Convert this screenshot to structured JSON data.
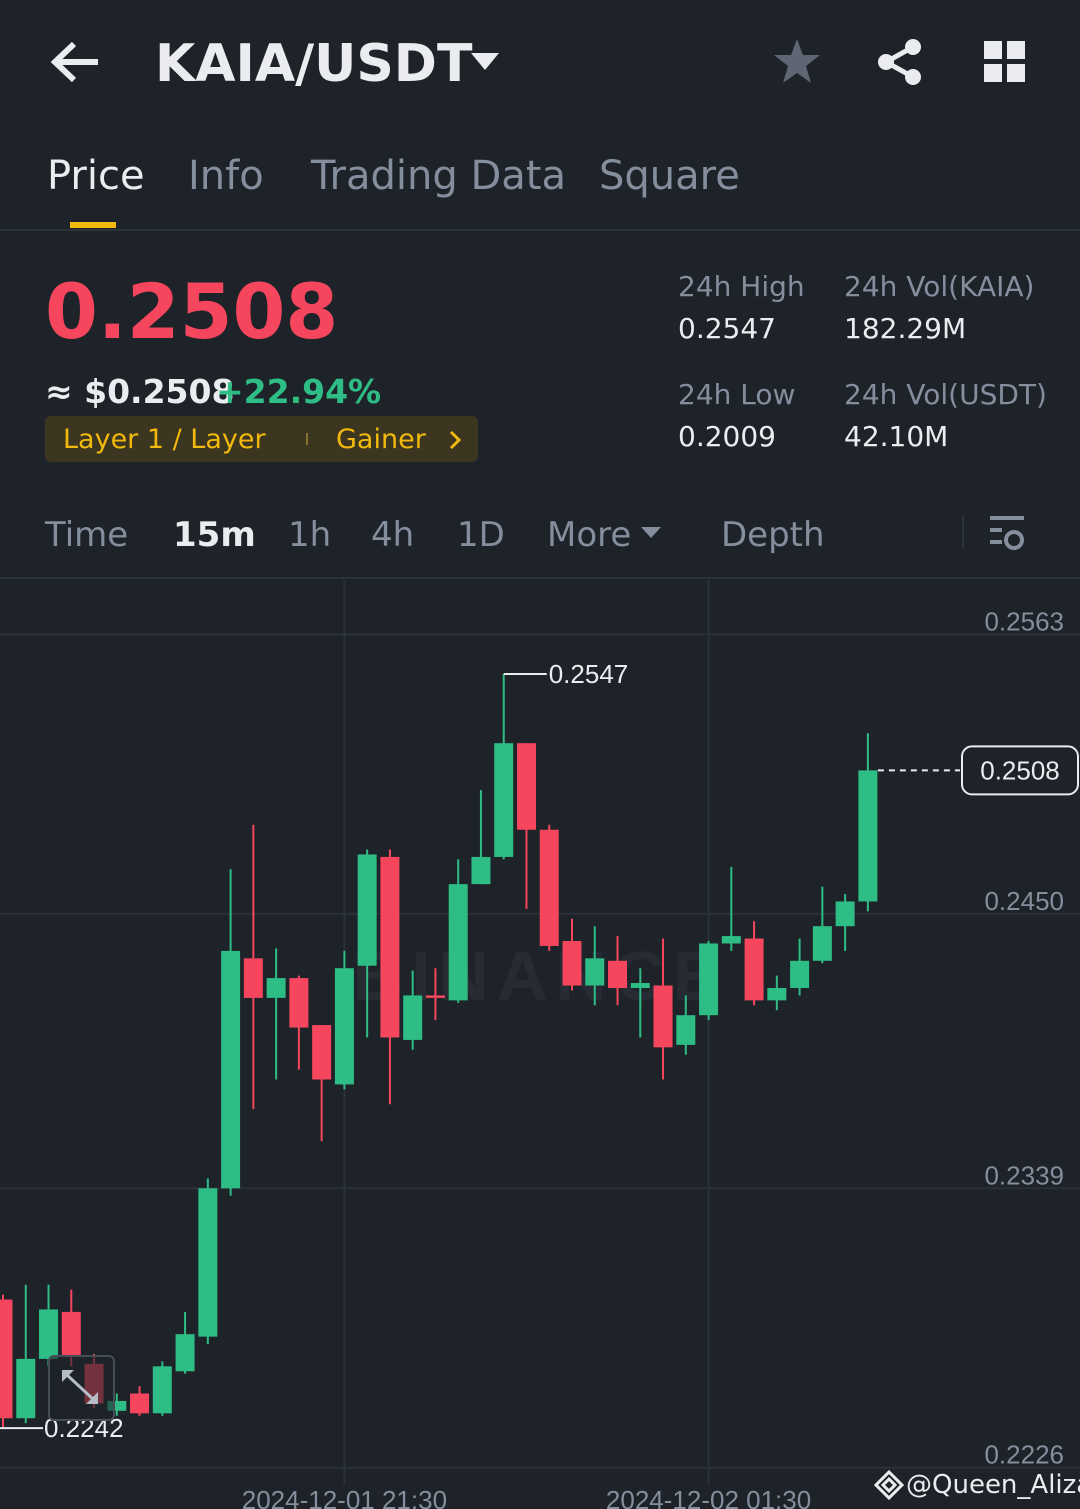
{
  "header": {
    "title": "KAIA/USDT"
  },
  "tabs": [
    "Price",
    "Info",
    "Trading Data",
    "Square"
  ],
  "ticker": {
    "price": "0.2508",
    "fiat": "≈ $0.2508",
    "change": "+22.94%",
    "tags": [
      "Layer 1 / Layer",
      "Gainer"
    ]
  },
  "stats": [
    {
      "label": "24h High",
      "value": "0.2547"
    },
    {
      "label": "24h Vol(KAIA)",
      "value": "182.29M"
    },
    {
      "label": "24h Low",
      "value": "0.2009"
    },
    {
      "label": "24h Vol(USDT)",
      "value": "42.10M"
    }
  ],
  "intervals": [
    "Time",
    "15m",
    "1h",
    "4h",
    "1D",
    "More",
    "Depth"
  ],
  "chart_data": {
    "type": "candlestick",
    "categories": [
      null,
      null,
      null,
      null,
      null,
      null,
      null,
      null,
      null,
      null,
      null,
      null,
      null,
      null,
      null,
      "2024-12-01 21:30",
      null,
      null,
      null,
      null,
      null,
      null,
      null,
      null,
      null,
      null,
      null,
      null,
      null,
      null,
      null,
      "2024-12-02 01:30",
      null,
      null,
      null,
      null,
      null,
      null,
      null
    ],
    "open": [
      0.2294,
      0.2246,
      0.227,
      0.2289,
      0.2268,
      0.2249,
      0.2256,
      0.2248,
      0.2265,
      0.2279,
      0.2339,
      0.2432,
      0.2416,
      0.2424,
      0.2405,
      0.2381,
      0.2429,
      0.2473,
      0.2399,
      0.2417,
      0.2415,
      0.2462,
      0.2473,
      0.2519,
      0.2484,
      0.2439,
      0.2421,
      0.2431,
      0.242,
      0.2421,
      0.2397,
      0.2409,
      0.2438,
      0.244,
      0.2415,
      0.242,
      0.2431,
      0.2445,
      0.2455
    ],
    "high": [
      0.2296,
      0.23,
      0.23,
      0.2298,
      0.2272,
      0.2256,
      0.2259,
      0.2269,
      0.2289,
      0.2343,
      0.2468,
      0.2486,
      0.2436,
      0.2425,
      0.2405,
      0.2435,
      0.2476,
      0.2476,
      0.2427,
      0.2428,
      0.2472,
      0.25,
      0.2547,
      0.2519,
      0.2486,
      0.2448,
      0.2445,
      0.2441,
      0.2428,
      0.244,
      0.2417,
      0.2439,
      0.2469,
      0.2447,
      0.2425,
      0.244,
      0.2461,
      0.2458,
      0.2523
    ],
    "low": [
      0.2242,
      0.2244,
      0.2267,
      0.2267,
      0.225,
      0.2247,
      0.2247,
      0.2247,
      0.2264,
      0.2276,
      0.2336,
      0.2371,
      0.2383,
      0.2387,
      0.2358,
      0.2379,
      0.24,
      0.2373,
      0.2395,
      0.2407,
      0.2414,
      0.2462,
      0.2472,
      0.2452,
      0.2435,
      0.2419,
      0.2413,
      0.2413,
      0.24,
      0.2383,
      0.2393,
      0.2407,
      0.2435,
      0.2413,
      0.2411,
      0.2417,
      0.243,
      0.2435,
      0.2451
    ],
    "close": [
      0.2246,
      0.227,
      0.229,
      0.2271,
      0.2252,
      0.2253,
      0.2248,
      0.2267,
      0.228,
      0.2339,
      0.2435,
      0.2416,
      0.2424,
      0.2404,
      0.2383,
      0.2428,
      0.2474,
      0.24,
      0.2417,
      0.2416,
      0.2462,
      0.2473,
      0.2519,
      0.2484,
      0.2437,
      0.2421,
      0.2432,
      0.242,
      0.2422,
      0.2396,
      0.2409,
      0.2438,
      0.2441,
      0.2415,
      0.242,
      0.2431,
      0.2445,
      0.2455,
      0.2508
    ],
    "up_color": "#2ebd85",
    "down_color": "#f6465d",
    "ylim": [
      0.2219,
      0.2585
    ],
    "yticks": [
      0.2226,
      0.2339,
      {
        "value": 0.245,
        "label": "0.2450"
      },
      0.2563
    ],
    "grid": true,
    "last_price": 0.2508,
    "max_marker": 0.2547,
    "min_marker": 0.2242
  },
  "watermark": "BINANCE",
  "credit": "@Queen_Aliza"
}
